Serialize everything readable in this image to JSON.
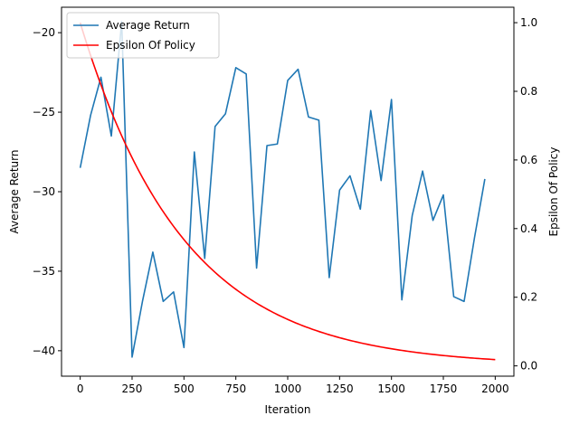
{
  "chart_data": {
    "type": "line",
    "xlabel": "Iteration",
    "ylabel_left": "Average Return",
    "ylabel_right": "Epsilon Of Policy",
    "xlim": [
      -90,
      2090
    ],
    "ylim_left": [
      -41.6,
      -18.4
    ],
    "ylim_right": [
      -0.03,
      1.045
    ],
    "x_ticks": [
      0,
      250,
      500,
      750,
      1000,
      1250,
      1500,
      1750,
      2000
    ],
    "y_left_ticks": [
      -20,
      -25,
      -30,
      -35,
      -40
    ],
    "y_right_ticks": [
      0.0,
      0.2,
      0.4,
      0.6,
      0.8,
      1.0
    ],
    "legend_position": "upper-left",
    "series": [
      {
        "name": "Average Return",
        "axis": "left",
        "color": "#1f77b4",
        "x": [
          0,
          50,
          100,
          150,
          200,
          250,
          300,
          350,
          400,
          450,
          500,
          550,
          600,
          650,
          700,
          750,
          800,
          850,
          900,
          950,
          1000,
          1050,
          1100,
          1150,
          1200,
          1250,
          1300,
          1350,
          1400,
          1450,
          1500,
          1550,
          1600,
          1650,
          1700,
          1750,
          1800,
          1850,
          1900,
          1950
        ],
        "y": [
          -28.5,
          -25.2,
          -22.8,
          -26.5,
          -19.3,
          -40.4,
          -36.9,
          -33.8,
          -36.9,
          -36.3,
          -39.8,
          -27.5,
          -34.2,
          -25.9,
          -25.1,
          -22.2,
          -22.6,
          -34.8,
          -27.1,
          -27.0,
          -23.0,
          -22.3,
          -25.3,
          -25.5,
          -35.4,
          -29.9,
          -29.0,
          -31.1,
          -24.9,
          -29.3,
          -24.2,
          -36.8,
          -31.5,
          -28.7,
          -31.8,
          -30.2,
          -36.6,
          -36.9,
          -32.9,
          -29.2
        ]
      },
      {
        "name": "Epsilon Of Policy",
        "axis": "right",
        "color": "#ff0000",
        "function": "exp",
        "x_range": [
          0,
          2000
        ],
        "start": 1.0,
        "decay": 0.002
      }
    ]
  }
}
